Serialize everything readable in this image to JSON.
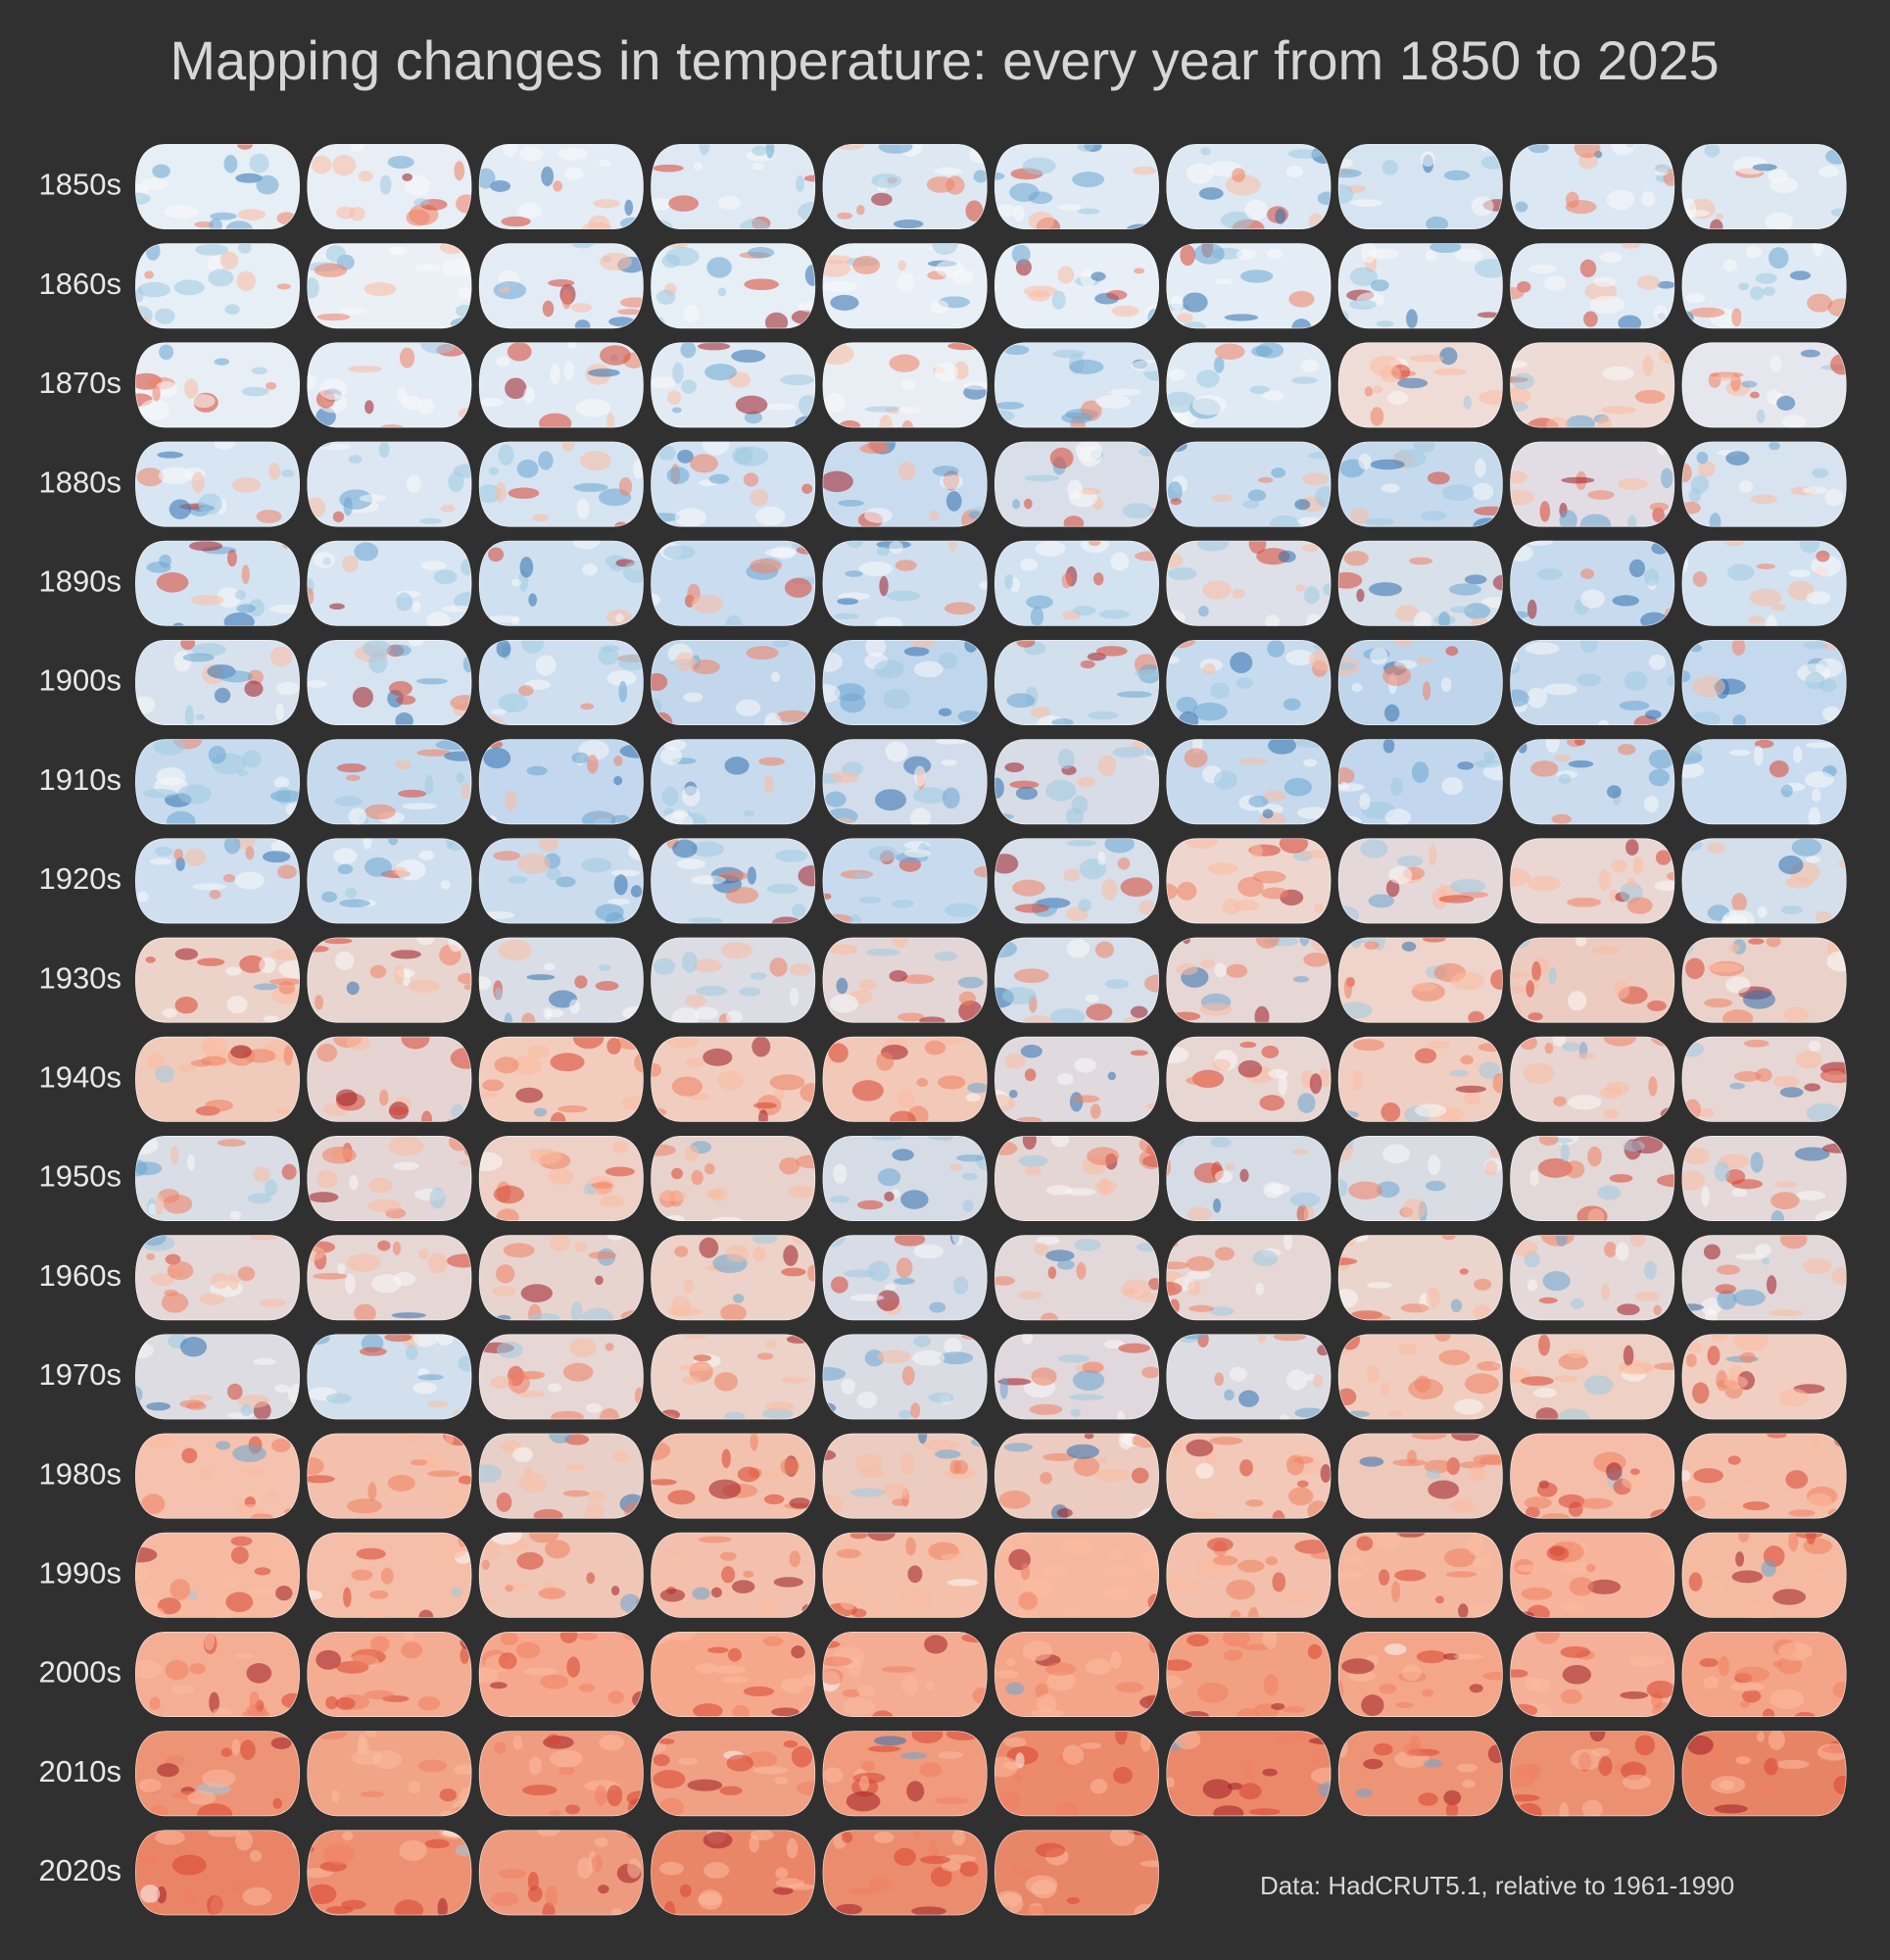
{
  "title": "Mapping changes in temperature: every year from 1850 to 2025",
  "rows": [
    {
      "label": "1850s",
      "colors": [
        "#e6eef6",
        "#e8eef5",
        "#e4ecf5",
        "#dfe9f4",
        "#dde8f3",
        "#e0eaf4",
        "#dce8f3",
        "#d6e4f2",
        "#dbe7f3",
        "#dde8f3"
      ]
    },
    {
      "label": "1860s",
      "colors": [
        "#e6eef6",
        "#eaf0f6",
        "#e3ecf5",
        "#e6eef6",
        "#e8eff6",
        "#e8eff6",
        "#e4edf5",
        "#e2ebf4",
        "#dfe9f4",
        "#e0eaf4"
      ]
    },
    {
      "label": "1870s",
      "colors": [
        "#e7eef5",
        "#e4ecf5",
        "#e0eaf4",
        "#e2ebf4",
        "#e8eef4",
        "#d8e5f2",
        "#e0eaf4",
        "#f0dcd6",
        "#eedbd6",
        "#e6e6ee"
      ]
    },
    {
      "label": "1880s",
      "colors": [
        "#d8e6f3",
        "#dce7f3",
        "#d6e4f2",
        "#d2e2f2",
        "#c9dcef",
        "#d9dfe8",
        "#cfdff0",
        "#c6daee",
        "#e2dde4",
        "#d8e3f0"
      ]
    },
    {
      "label": "1890s",
      "colors": [
        "#d4e3f2",
        "#d8e5f2",
        "#cfe0f0",
        "#cadcef",
        "#cfdff0",
        "#d2e2f1",
        "#dde0e8",
        "#d8e0ea",
        "#c8dbee",
        "#d2e2f1"
      ]
    },
    {
      "label": "1900s",
      "colors": [
        "#d8e2ee",
        "#d6e3f0",
        "#cfdff0",
        "#c3d7ec",
        "#c0d6ec",
        "#d2dfec",
        "#c8dbee",
        "#bfd5ec",
        "#c6d9ed",
        "#c5d9ee"
      ]
    },
    {
      "label": "1910s",
      "colors": [
        "#c8dbee",
        "#c6daee",
        "#c3d8ee",
        "#c8dbee",
        "#d2dcea",
        "#d8dce6",
        "#c6d9ed",
        "#c2d7ed",
        "#cbdcee",
        "#cadcef"
      ]
    },
    {
      "label": "1920s",
      "colors": [
        "#cfdff0",
        "#d0dfef",
        "#cbdcee",
        "#d2dfed",
        "#c8dbee",
        "#d6dfea",
        "#eed6cf",
        "#e4d8da",
        "#ead6d2",
        "#d4dfec"
      ]
    },
    {
      "label": "1930s",
      "colors": [
        "#ecd3ca",
        "#e8d5d0",
        "#d9dde6",
        "#dbdce4",
        "#e4d6d6",
        "#d6dfea",
        "#e6d6d4",
        "#eed4ca",
        "#ecccc0",
        "#ead2ca"
      ]
    },
    {
      "label": "1940s",
      "colors": [
        "#f0cbbb",
        "#e6d4d2",
        "#f2cdbd",
        "#f0cdbf",
        "#f2c8b8",
        "#e0d9de",
        "#e8d6d2",
        "#f0cec2",
        "#e8d4d0",
        "#e6d6d4"
      ]
    },
    {
      "label": "1950s",
      "colors": [
        "#d8dde6",
        "#e4d6d6",
        "#eed0c6",
        "#e8d2cc",
        "#d6dce6",
        "#e4d6d4",
        "#d6dce6",
        "#dadce4",
        "#e2d8d8",
        "#e4d8d8"
      ]
    },
    {
      "label": "1960s",
      "colors": [
        "#e4d8d8",
        "#e6d6d4",
        "#e8d4cf",
        "#ecd2c8",
        "#d8dce6",
        "#e2d8da",
        "#e6d6d4",
        "#ead4cc",
        "#e4d8d8",
        "#e2d8da"
      ]
    },
    {
      "label": "1970s",
      "colors": [
        "#dcdce2",
        "#d2dfec",
        "#e6d6d4",
        "#ecd2c8",
        "#dadce4",
        "#e0d8dc",
        "#dcdce2",
        "#f0cdbf",
        "#eed0c4",
        "#f0cec2"
      ]
    },
    {
      "label": "1980s",
      "colors": [
        "#f4c2ae",
        "#f2c0ac",
        "#e8d0c8",
        "#f2c2ae",
        "#ecccc0",
        "#ecccc0",
        "#f2c8b8",
        "#eec8ba",
        "#f4beaa",
        "#f4c0ac"
      ]
    },
    {
      "label": "1990s",
      "colors": [
        "#f6baa2",
        "#f4bea8",
        "#f0c6b6",
        "#f2c0ac",
        "#f4c0aa",
        "#f6b8a0",
        "#f2c0ac",
        "#f4b8a0",
        "#f6b49c",
        "#f4baa2"
      ]
    },
    {
      "label": "2000s",
      "colors": [
        "#f4ae94",
        "#f4ac92",
        "#f6a88e",
        "#f6a88c",
        "#f4ac92",
        "#f4a488",
        "#f2a082",
        "#f4a68a",
        "#f4b098",
        "#f4a488"
      ]
    },
    {
      "label": "2010s",
      "colors": [
        "#ee9476",
        "#f0a488",
        "#f09c80",
        "#f0a084",
        "#f09a7e",
        "#ec8a6c",
        "#ec886a",
        "#ee9476",
        "#ec9072",
        "#e88466"
      ]
    },
    {
      "label": "2020s",
      "colors": [
        "#ea8466",
        "#ee9072",
        "#ee9a7e",
        "#ea8668",
        "#ec8c6e",
        "#e88668"
      ]
    }
  ],
  "texture_colors": {
    "cool": [
      "#2f6fae",
      "#6aa6d2",
      "#9ecae1",
      "#fafafa"
    ],
    "warm": [
      "#9e1b22",
      "#d8432f",
      "#f08060",
      "#fcbba1"
    ]
  },
  "note": "Data: HadCRUT5.1, relative to 1961-1990"
}
